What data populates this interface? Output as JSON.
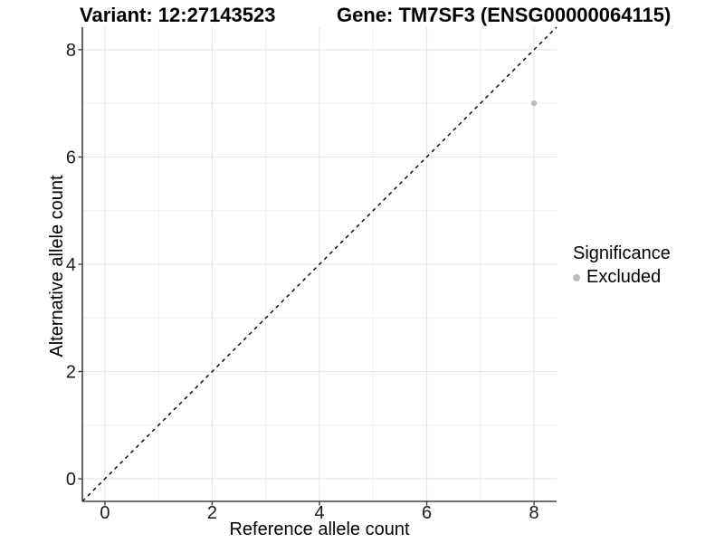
{
  "chart_data": {
    "type": "scatter",
    "title_left": "Variant: 12:27143523",
    "title_right": "Gene: TM7SF3 (ENSG00000064115)",
    "xlabel": "Reference allele count",
    "ylabel": "Alternative allele count",
    "xlim": [
      -0.42,
      8.42
    ],
    "ylim": [
      -0.42,
      8.42
    ],
    "xticks": [
      0,
      2,
      4,
      6,
      8
    ],
    "yticks": [
      0,
      2,
      4,
      6,
      8
    ],
    "minor_xticks": [
      1,
      3,
      5,
      7
    ],
    "minor_yticks": [
      1,
      3,
      5,
      7
    ],
    "grid": true,
    "reference_line": {
      "style": "dashed",
      "note": "identity line y = x",
      "from": [
        -0.42,
        -0.42
      ],
      "to": [
        8.42,
        8.42
      ]
    },
    "series": [
      {
        "name": "Excluded",
        "color": "#bcbcbc",
        "points": [
          {
            "x": 8,
            "y": 7
          }
        ]
      }
    ],
    "legend": {
      "title": "Significance",
      "position": "right",
      "entries": [
        {
          "label": "Excluded",
          "color": "#bcbcbc"
        }
      ]
    }
  },
  "colors": {
    "background": "#ffffff",
    "grid_major": "#e6e6e6",
    "grid_minor": "#f0f0f0",
    "axis_line": "#404040",
    "tick_text": "#1a1a1a",
    "title_text": "#000000",
    "reference_line": "#000000"
  }
}
